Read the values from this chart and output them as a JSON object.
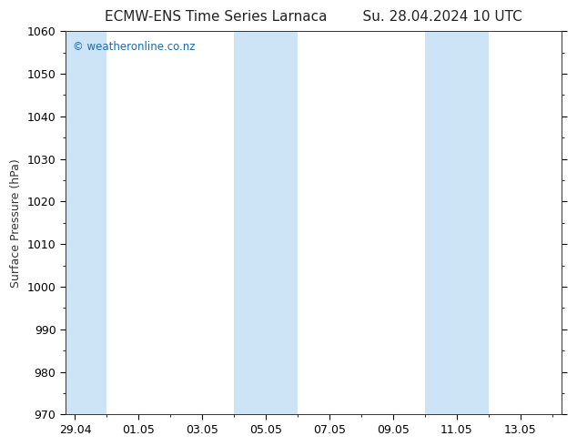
{
  "title_left": "ECMW-ENS Time Series Larnaca",
  "title_right": "Su. 28.04.2024 10 UTC",
  "ylabel": "Surface Pressure (hPa)",
  "ylim": [
    970,
    1060
  ],
  "yticks": [
    970,
    980,
    990,
    1000,
    1010,
    1020,
    1030,
    1040,
    1050,
    1060
  ],
  "xtick_labels": [
    "29.04",
    "01.05",
    "03.05",
    "05.05",
    "07.05",
    "09.05",
    "11.05",
    "13.05"
  ],
  "xtick_positions": [
    0,
    2,
    4,
    6,
    8,
    10,
    12,
    14
  ],
  "xlim": [
    -0.3,
    15.3
  ],
  "background_color": "#ffffff",
  "plot_bg_color": "#ffffff",
  "shaded_bands": [
    {
      "x_start": -0.3,
      "x_end": 1.0,
      "color": "#cce4f5"
    },
    {
      "x_start": 5.0,
      "x_end": 7.0,
      "color": "#cce4f5"
    },
    {
      "x_start": 11.0,
      "x_end": 13.0,
      "color": "#cce4f5"
    }
  ],
  "watermark_text": "© weatheronline.co.nz",
  "watermark_color": "#1a6ab0",
  "title_fontsize": 11,
  "axis_label_fontsize": 9,
  "tick_fontsize": 9
}
